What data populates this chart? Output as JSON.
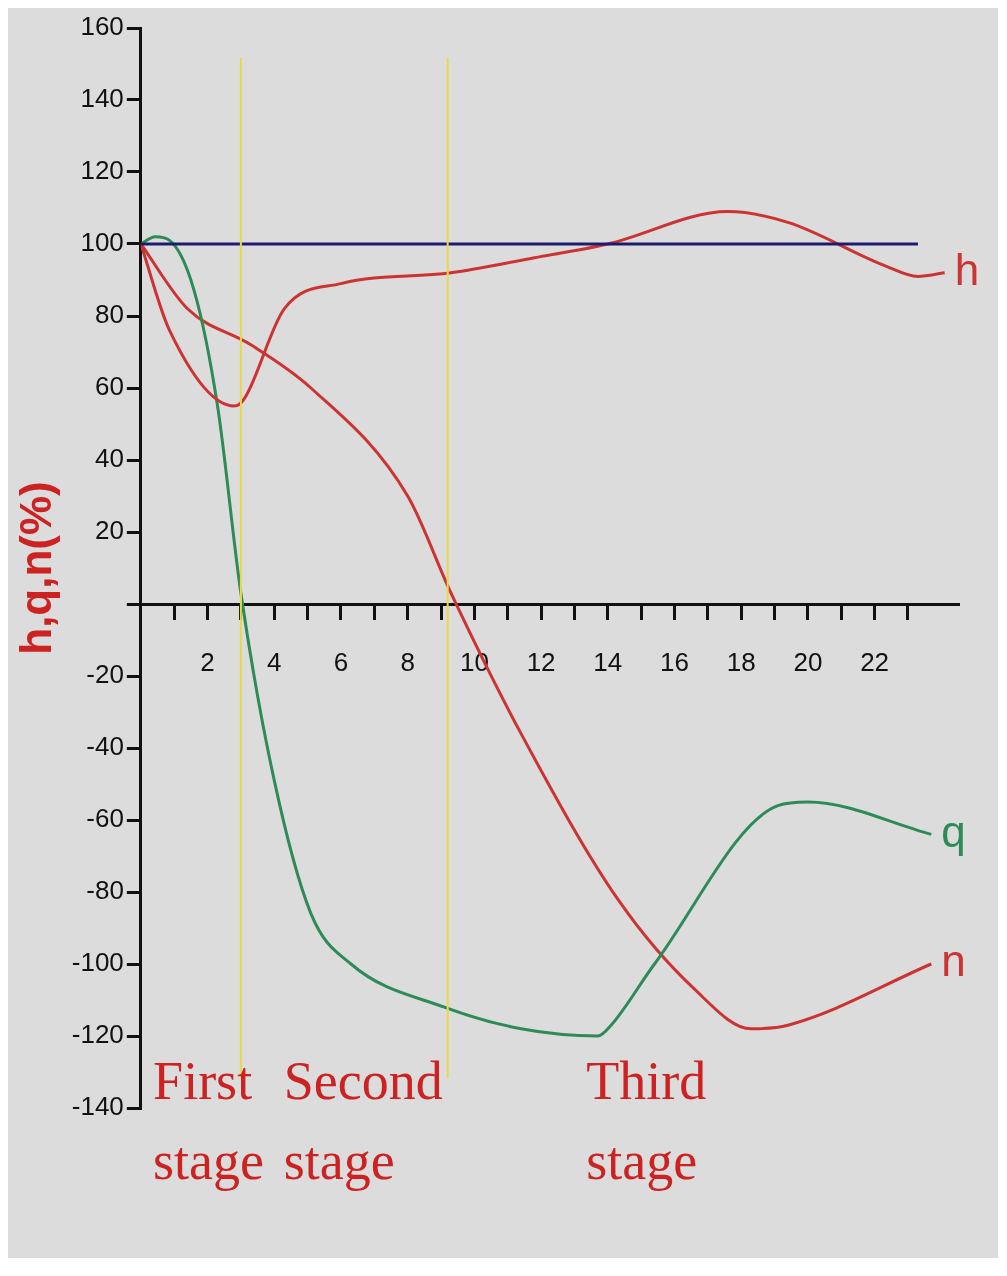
{
  "chart_data": {
    "type": "line",
    "ylabel": "h,q,n(%)",
    "xlim": [
      0,
      24.5
    ],
    "ylim": [
      -140,
      160
    ],
    "xticks": [
      {
        "value": 1,
        "label": null
      },
      2,
      {
        "value": 3,
        "label": null
      },
      4,
      {
        "value": 5,
        "label": null
      },
      6,
      {
        "value": 7,
        "label": null
      },
      8,
      {
        "value": 9,
        "label": null
      },
      10,
      {
        "value": 11,
        "label": null
      },
      12,
      {
        "value": 13,
        "label": null
      },
      14,
      {
        "value": 15,
        "label": null
      },
      16,
      {
        "value": 17,
        "label": null
      },
      18,
      {
        "value": 19,
        "label": null
      },
      20,
      {
        "value": 21,
        "label": null
      },
      22,
      {
        "value": 23,
        "label": null
      }
    ],
    "yticks": [
      -140,
      -120,
      -100,
      -80,
      -60,
      -40,
      -20,
      {
        "value": 0,
        "label": null
      },
      20,
      40,
      60,
      80,
      100,
      120,
      140,
      160
    ],
    "marker": "none",
    "line_style": "solid",
    "series": [
      {
        "type": "line",
        "color": "#1c1c6e",
        "x": [
          0,
          23.3
        ],
        "values": [
          100,
          100
        ]
      },
      {
        "type": "line",
        "name": "h",
        "color": "#cc3333",
        "x": [
          0,
          0.86,
          2.8,
          3.1,
          4.3,
          6,
          9.3,
          11.7,
          14,
          17.6,
          19.4,
          22.3,
          23.3,
          24.1
        ],
        "values": [
          100,
          76,
          55,
          57,
          82,
          89,
          92,
          96,
          100,
          109,
          106,
          94,
          91,
          92
        ]
      },
      {
        "type": "line",
        "name": "q",
        "color": "#2e8b57",
        "x": [
          0,
          0.43,
          0.86,
          1.6,
          2.3,
          3,
          4,
          5.1,
          6.3,
          9.1,
          11.4,
          13.7,
          14.1,
          15.4,
          19.1,
          20,
          23.7
        ],
        "values": [
          100,
          102,
          101,
          87,
          55,
          3,
          -49,
          -86,
          -100,
          -112,
          -118,
          -120,
          -117,
          -100,
          -56,
          -55,
          -64
        ]
      },
      {
        "type": "line",
        "name": "n",
        "color": "#cc3333",
        "x": [
          0,
          1.4,
          3.3,
          5.1,
          8,
          9.3,
          11.4,
          14.3,
          16.6,
          18.3,
          19.4,
          23.7
        ],
        "values": [
          100,
          82,
          72,
          60,
          30,
          3,
          -36,
          -82,
          -107,
          -118,
          -117,
          -100
        ]
      }
    ],
    "ref_lines": [
      {
        "axis": "x",
        "value": 3,
        "color": "#e8d84a"
      },
      {
        "axis": "x",
        "value": 9.2,
        "color": "#e8d84a"
      }
    ],
    "annotations": [
      "First stage",
      "Second stage",
      "Third stage"
    ]
  }
}
